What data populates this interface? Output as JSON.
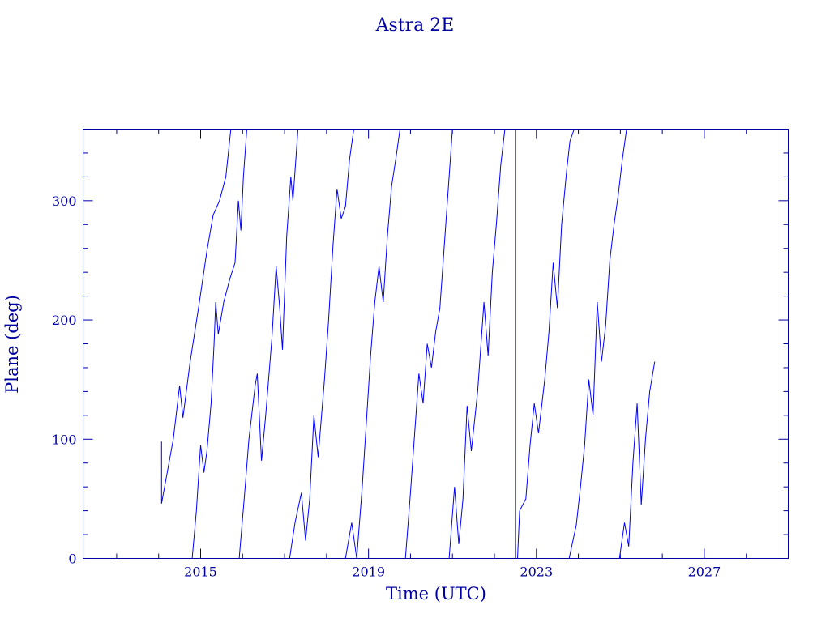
{
  "chart_data": {
    "type": "line",
    "title": "Astra 2E",
    "xlabel": "Time (UTC)",
    "ylabel": "Plane (deg)",
    "xlim": [
      2012.2,
      2029.0
    ],
    "ylim": [
      0,
      360
    ],
    "x_ticks": [
      2015,
      2019,
      2023,
      2027
    ],
    "x_tick_labels": [
      "2015",
      "2019",
      "2023",
      "2027"
    ],
    "x_minor_step": 1,
    "y_ticks": [
      0,
      100,
      200,
      300
    ],
    "y_tick_labels": [
      "0",
      "100",
      "200",
      "300"
    ],
    "y_minor_step": 20,
    "grid": false,
    "legend": "none",
    "marker_x": 2022.5,
    "series": [
      {
        "values": [
          [
            2014.07,
            98
          ],
          [
            2014.07,
            46
          ],
          [
            2014.35,
            100
          ],
          [
            2014.5,
            145
          ],
          [
            2014.58,
            118
          ],
          [
            2014.75,
            165
          ],
          [
            2014.95,
            210
          ],
          [
            2015.15,
            258
          ],
          [
            2015.3,
            288
          ],
          [
            2015.45,
            300
          ],
          [
            2015.6,
            320
          ],
          [
            2015.72,
            360
          ]
        ]
      },
      {
        "values": [
          [
            2014.8,
            0
          ],
          [
            2014.9,
            40
          ],
          [
            2015.0,
            95
          ],
          [
            2015.08,
            72
          ],
          [
            2015.15,
            90
          ],
          [
            2015.25,
            130
          ],
          [
            2015.32,
            180
          ],
          [
            2015.36,
            215
          ],
          [
            2015.42,
            188
          ],
          [
            2015.55,
            215
          ],
          [
            2015.7,
            235
          ],
          [
            2015.82,
            248
          ],
          [
            2015.9,
            300
          ],
          [
            2015.96,
            275
          ],
          [
            2016.02,
            320
          ],
          [
            2016.1,
            360
          ]
        ]
      },
      {
        "values": [
          [
            2015.92,
            0
          ],
          [
            2016.05,
            55
          ],
          [
            2016.15,
            100
          ],
          [
            2016.3,
            145
          ],
          [
            2016.35,
            155
          ],
          [
            2016.45,
            82
          ],
          [
            2016.55,
            120
          ],
          [
            2016.7,
            185
          ],
          [
            2016.8,
            245
          ],
          [
            2016.88,
            212
          ],
          [
            2016.95,
            175
          ],
          [
            2017.05,
            270
          ],
          [
            2017.15,
            320
          ],
          [
            2017.2,
            300
          ],
          [
            2017.32,
            360
          ]
        ]
      },
      {
        "values": [
          [
            2017.12,
            0
          ],
          [
            2017.25,
            30
          ],
          [
            2017.4,
            55
          ],
          [
            2017.5,
            15
          ],
          [
            2017.6,
            50
          ],
          [
            2017.7,
            120
          ],
          [
            2017.8,
            85
          ],
          [
            2017.95,
            150
          ],
          [
            2018.05,
            200
          ],
          [
            2018.15,
            260
          ],
          [
            2018.25,
            310
          ],
          [
            2018.35,
            285
          ],
          [
            2018.45,
            295
          ],
          [
            2018.55,
            335
          ],
          [
            2018.65,
            362
          ]
        ]
      },
      {
        "values": [
          [
            2018.45,
            0
          ],
          [
            2018.6,
            30
          ],
          [
            2018.72,
            0
          ],
          [
            2018.85,
            60
          ],
          [
            2018.95,
            115
          ],
          [
            2019.05,
            170
          ],
          [
            2019.15,
            215
          ],
          [
            2019.25,
            245
          ],
          [
            2019.35,
            215
          ],
          [
            2019.45,
            270
          ],
          [
            2019.55,
            312
          ],
          [
            2019.65,
            335
          ],
          [
            2019.75,
            362
          ]
        ]
      },
      {
        "values": [
          [
            2019.88,
            0
          ],
          [
            2020.0,
            55
          ],
          [
            2020.1,
            105
          ],
          [
            2020.2,
            155
          ],
          [
            2020.3,
            130
          ],
          [
            2020.4,
            180
          ],
          [
            2020.5,
            160
          ],
          [
            2020.6,
            190
          ],
          [
            2020.7,
            210
          ],
          [
            2020.8,
            260
          ],
          [
            2020.92,
            320
          ],
          [
            2021.0,
            362
          ]
        ]
      },
      {
        "values": [
          [
            2020.92,
            0
          ],
          [
            2021.05,
            60
          ],
          [
            2021.15,
            12
          ],
          [
            2021.25,
            50
          ],
          [
            2021.35,
            128
          ],
          [
            2021.45,
            90
          ],
          [
            2021.6,
            140
          ],
          [
            2021.75,
            215
          ],
          [
            2021.85,
            170
          ],
          [
            2021.95,
            240
          ],
          [
            2022.05,
            282
          ],
          [
            2022.15,
            330
          ],
          [
            2022.25,
            362
          ]
        ]
      },
      {
        "values": [
          [
            2022.55,
            0
          ],
          [
            2022.6,
            40
          ],
          [
            2022.75,
            50
          ],
          [
            2022.85,
            95
          ],
          [
            2022.95,
            130
          ],
          [
            2023.05,
            105
          ],
          [
            2023.2,
            150
          ],
          [
            2023.3,
            190
          ],
          [
            2023.4,
            248
          ],
          [
            2023.5,
            210
          ],
          [
            2023.6,
            280
          ],
          [
            2023.72,
            325
          ],
          [
            2023.8,
            350
          ],
          [
            2023.9,
            362
          ]
        ]
      },
      {
        "values": [
          [
            2023.78,
            0
          ],
          [
            2023.95,
            28
          ],
          [
            2024.05,
            60
          ],
          [
            2024.15,
            95
          ],
          [
            2024.25,
            150
          ],
          [
            2024.35,
            120
          ],
          [
            2024.45,
            215
          ],
          [
            2024.55,
            165
          ],
          [
            2024.65,
            195
          ],
          [
            2024.75,
            250
          ],
          [
            2024.85,
            280
          ],
          [
            2024.95,
            305
          ],
          [
            2025.05,
            335
          ],
          [
            2025.15,
            362
          ]
        ]
      },
      {
        "values": [
          [
            2024.98,
            0
          ],
          [
            2025.1,
            30
          ],
          [
            2025.2,
            10
          ],
          [
            2025.3,
            80
          ],
          [
            2025.4,
            130
          ],
          [
            2025.5,
            45
          ],
          [
            2025.6,
            100
          ],
          [
            2025.7,
            140
          ],
          [
            2025.82,
            165
          ]
        ]
      }
    ]
  }
}
